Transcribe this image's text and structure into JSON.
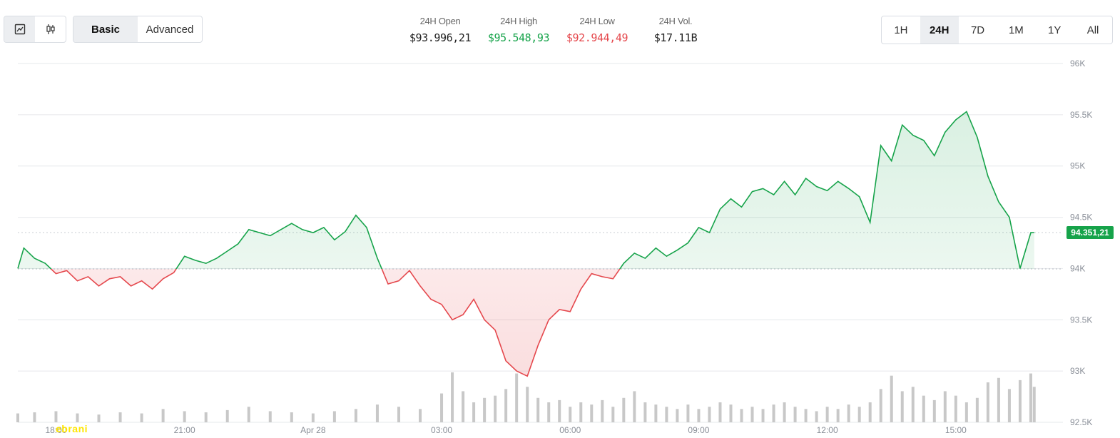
{
  "toolbar": {
    "chart_types": [
      {
        "icon": "line-chart-icon",
        "active": true
      },
      {
        "icon": "candlestick-icon",
        "active": false
      }
    ],
    "modes": [
      {
        "label": "Basic",
        "active": true
      },
      {
        "label": "Advanced",
        "active": false
      }
    ],
    "ranges": [
      {
        "label": "1H",
        "active": false
      },
      {
        "label": "24H",
        "active": true
      },
      {
        "label": "7D",
        "active": false
      },
      {
        "label": "1M",
        "active": false
      },
      {
        "label": "1Y",
        "active": false
      },
      {
        "label": "All",
        "active": false
      }
    ]
  },
  "stats": {
    "open": {
      "label": "24H Open",
      "value": "$93.996,21"
    },
    "high": {
      "label": "24H High",
      "value": "$95.548,93"
    },
    "low": {
      "label": "24H Low",
      "value": "$92.944,49"
    },
    "vol": {
      "label": "24H Vol.",
      "value": "$17.11B"
    }
  },
  "current_price_label": "94.351,21",
  "watermark_text": "ebrani",
  "colors": {
    "up": "#16a34a",
    "down": "#e5484d",
    "up_fill": "#16a34a",
    "down_fill": "#e5484d",
    "grid": "#e6e8eb",
    "volume": "#c8c8c8"
  },
  "chart_data": {
    "type": "area",
    "title": "",
    "xlabel": "",
    "ylabel": "",
    "ylim": [
      92500,
      96000
    ],
    "baseline": 93996.21,
    "current": 94351.21,
    "y_ticks": [
      "96K",
      "95.5K",
      "95K",
      "94.5K",
      "94K",
      "93.5K",
      "93K",
      "92.5K"
    ],
    "y_tick_values": [
      96000,
      95500,
      95000,
      94500,
      94000,
      93500,
      93000,
      92500
    ],
    "x_ticks": [
      "18:00",
      "21:00",
      "Apr 28",
      "03:00",
      "06:00",
      "09:00",
      "12:00",
      "15:00"
    ],
    "x_hours": [
      18,
      21,
      24,
      27,
      30,
      33,
      36,
      39
    ],
    "x_start_hour": 17.11,
    "x_end_hour": 41.5,
    "price_series": [
      [
        17.11,
        94000
      ],
      [
        17.25,
        94200
      ],
      [
        17.5,
        94100
      ],
      [
        17.75,
        94050
      ],
      [
        18.0,
        93950
      ],
      [
        18.25,
        93980
      ],
      [
        18.5,
        93880
      ],
      [
        18.75,
        93920
      ],
      [
        19.0,
        93830
      ],
      [
        19.25,
        93900
      ],
      [
        19.5,
        93920
      ],
      [
        19.75,
        93830
      ],
      [
        20.0,
        93880
      ],
      [
        20.25,
        93800
      ],
      [
        20.5,
        93900
      ],
      [
        20.75,
        93960
      ],
      [
        21.0,
        94120
      ],
      [
        21.25,
        94080
      ],
      [
        21.5,
        94050
      ],
      [
        21.75,
        94100
      ],
      [
        22.0,
        94170
      ],
      [
        22.25,
        94240
      ],
      [
        22.5,
        94380
      ],
      [
        22.75,
        94350
      ],
      [
        23.0,
        94320
      ],
      [
        23.25,
        94380
      ],
      [
        23.5,
        94440
      ],
      [
        23.75,
        94380
      ],
      [
        24.0,
        94350
      ],
      [
        24.25,
        94400
      ],
      [
        24.5,
        94280
      ],
      [
        24.75,
        94360
      ],
      [
        25.0,
        94520
      ],
      [
        25.25,
        94400
      ],
      [
        25.5,
        94100
      ],
      [
        25.75,
        93850
      ],
      [
        26.0,
        93880
      ],
      [
        26.25,
        93980
      ],
      [
        26.5,
        93830
      ],
      [
        26.75,
        93700
      ],
      [
        27.0,
        93650
      ],
      [
        27.25,
        93500
      ],
      [
        27.5,
        93550
      ],
      [
        27.75,
        93700
      ],
      [
        28.0,
        93500
      ],
      [
        28.25,
        93400
      ],
      [
        28.5,
        93100
      ],
      [
        28.75,
        93000
      ],
      [
        29.0,
        92950
      ],
      [
        29.25,
        93250
      ],
      [
        29.5,
        93500
      ],
      [
        29.75,
        93600
      ],
      [
        30.0,
        93580
      ],
      [
        30.25,
        93800
      ],
      [
        30.5,
        93950
      ],
      [
        30.75,
        93920
      ],
      [
        31.0,
        93900
      ],
      [
        31.25,
        94050
      ],
      [
        31.5,
        94150
      ],
      [
        31.75,
        94100
      ],
      [
        32.0,
        94200
      ],
      [
        32.25,
        94120
      ],
      [
        32.5,
        94180
      ],
      [
        32.75,
        94250
      ],
      [
        33.0,
        94400
      ],
      [
        33.25,
        94350
      ],
      [
        33.5,
        94580
      ],
      [
        33.75,
        94680
      ],
      [
        34.0,
        94600
      ],
      [
        34.25,
        94750
      ],
      [
        34.5,
        94780
      ],
      [
        34.75,
        94720
      ],
      [
        35.0,
        94850
      ],
      [
        35.25,
        94720
      ],
      [
        35.5,
        94880
      ],
      [
        35.75,
        94800
      ],
      [
        36.0,
        94760
      ],
      [
        36.25,
        94850
      ],
      [
        36.5,
        94780
      ],
      [
        36.75,
        94700
      ],
      [
        37.0,
        94450
      ],
      [
        37.25,
        95200
      ],
      [
        37.5,
        95050
      ],
      [
        37.75,
        95400
      ],
      [
        38.0,
        95300
      ],
      [
        38.25,
        95250
      ],
      [
        38.5,
        95100
      ],
      [
        38.75,
        95330
      ],
      [
        39.0,
        95450
      ],
      [
        39.25,
        95530
      ],
      [
        39.5,
        95280
      ],
      [
        39.75,
        94900
      ],
      [
        40.0,
        94650
      ],
      [
        40.25,
        94500
      ],
      [
        40.5,
        94000
      ],
      [
        40.75,
        94350
      ],
      [
        40.83,
        94351.21
      ]
    ],
    "volume_series": [
      [
        17.11,
        8
      ],
      [
        17.5,
        9
      ],
      [
        18.0,
        10
      ],
      [
        18.5,
        8
      ],
      [
        19.0,
        7
      ],
      [
        19.5,
        9
      ],
      [
        20.0,
        8
      ],
      [
        20.5,
        12
      ],
      [
        21.0,
        10
      ],
      [
        21.5,
        9
      ],
      [
        22.0,
        11
      ],
      [
        22.5,
        14
      ],
      [
        23.0,
        10
      ],
      [
        23.5,
        9
      ],
      [
        24.0,
        8
      ],
      [
        24.5,
        10
      ],
      [
        25.0,
        12
      ],
      [
        25.5,
        16
      ],
      [
        26.0,
        14
      ],
      [
        26.5,
        12
      ],
      [
        27.0,
        26
      ],
      [
        27.25,
        45
      ],
      [
        27.5,
        28
      ],
      [
        27.75,
        18
      ],
      [
        28.0,
        22
      ],
      [
        28.25,
        24
      ],
      [
        28.5,
        30
      ],
      [
        28.75,
        44
      ],
      [
        29.0,
        32
      ],
      [
        29.25,
        22
      ],
      [
        29.5,
        18
      ],
      [
        29.75,
        20
      ],
      [
        30.0,
        14
      ],
      [
        30.25,
        18
      ],
      [
        30.5,
        16
      ],
      [
        30.75,
        20
      ],
      [
        31.0,
        14
      ],
      [
        31.25,
        22
      ],
      [
        31.5,
        28
      ],
      [
        31.75,
        18
      ],
      [
        32.0,
        16
      ],
      [
        32.25,
        14
      ],
      [
        32.5,
        12
      ],
      [
        32.75,
        16
      ],
      [
        33.0,
        12
      ],
      [
        33.25,
        14
      ],
      [
        33.5,
        18
      ],
      [
        33.75,
        16
      ],
      [
        34.0,
        12
      ],
      [
        34.25,
        14
      ],
      [
        34.5,
        12
      ],
      [
        34.75,
        16
      ],
      [
        35.0,
        18
      ],
      [
        35.25,
        14
      ],
      [
        35.5,
        12
      ],
      [
        35.75,
        10
      ],
      [
        36.0,
        14
      ],
      [
        36.25,
        12
      ],
      [
        36.5,
        16
      ],
      [
        36.75,
        14
      ],
      [
        37.0,
        18
      ],
      [
        37.25,
        30
      ],
      [
        37.5,
        42
      ],
      [
        37.75,
        28
      ],
      [
        38.0,
        32
      ],
      [
        38.25,
        24
      ],
      [
        38.5,
        20
      ],
      [
        38.75,
        28
      ],
      [
        39.0,
        24
      ],
      [
        39.25,
        18
      ],
      [
        39.5,
        22
      ],
      [
        39.75,
        36
      ],
      [
        40.0,
        40
      ],
      [
        40.25,
        30
      ],
      [
        40.5,
        38
      ],
      [
        40.75,
        44
      ],
      [
        40.83,
        32
      ]
    ]
  }
}
